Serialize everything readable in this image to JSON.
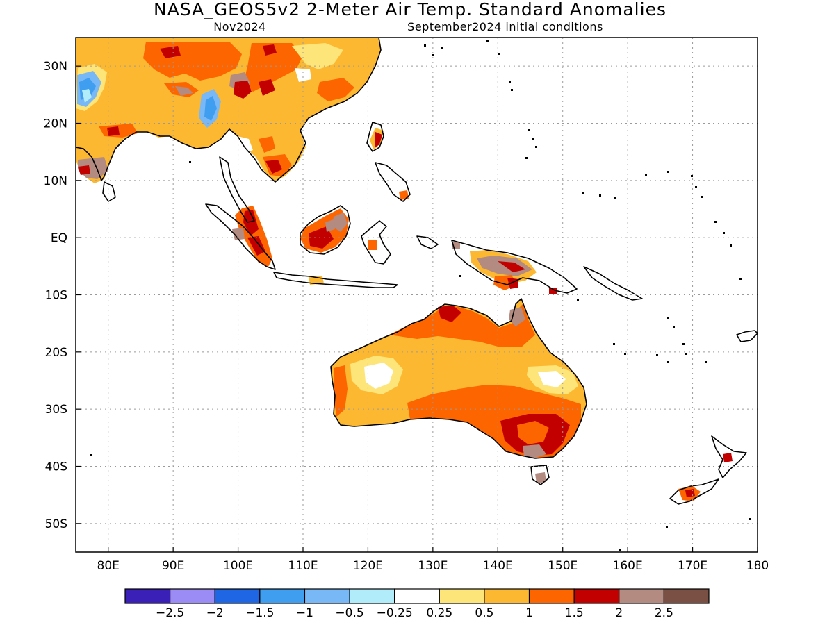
{
  "title": "NASA_GEOS5v2 2-Meter Air Temp. Standard Anomalies",
  "subtitle_left": "Nov2024",
  "subtitle_right": "September2024 initial conditions",
  "axes": {
    "lon_ticks": [
      "80E",
      "90E",
      "100E",
      "110E",
      "120E",
      "130E",
      "140E",
      "150E",
      "160E",
      "170E",
      "180"
    ],
    "lat_ticks": [
      "30N",
      "20N",
      "10N",
      "EQ",
      "10S",
      "20S",
      "30S",
      "40S",
      "50S"
    ],
    "lon_range": [
      75,
      180
    ],
    "lat_range": [
      -55,
      35
    ],
    "grid": "dotted"
  },
  "colorbar": {
    "colors": [
      "#3a20b6",
      "#9b8bf4",
      "#1f66e5",
      "#3f9ef0",
      "#78b8f6",
      "#b1ecfa",
      "#ffffff",
      "#fde57a",
      "#fdb832",
      "#fd6500",
      "#c20000",
      "#b38b80",
      "#7a5045"
    ],
    "labels": [
      "−2.5",
      "−2",
      "−1.5",
      "−1",
      "−0.5",
      "−0.25",
      "0.25",
      "0.5",
      "1",
      "1.5",
      "2",
      "2.5"
    ]
  },
  "palette": {
    "cool": "#3f9ef0",
    "light_cool": "#b1ecfa",
    "neutral": "#ffffff",
    "light_warm": "#fde57a",
    "warm": "#fdb832",
    "hot": "#fd6500",
    "very_hot": "#c20000",
    "extreme": "#b38b80"
  }
}
